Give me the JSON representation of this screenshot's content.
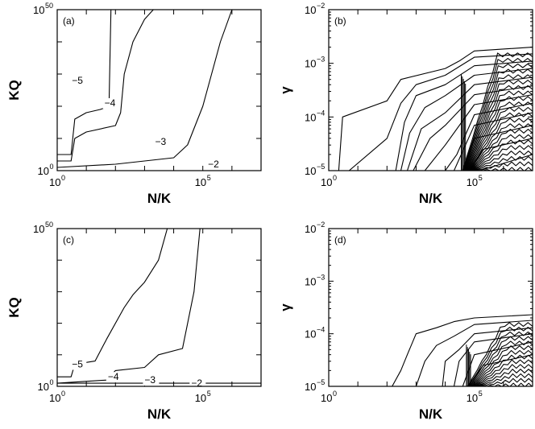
{
  "chart_data": [
    {
      "panel": "(a)",
      "type": "line",
      "xlabel": "N/K",
      "ylabel": "KQ",
      "x_scale": "log",
      "y_scale": "log",
      "xlim": [
        1,
        10000000
      ],
      "ylim": [
        1,
        1e+50
      ],
      "x_ticks": [
        {
          "base": "10",
          "exp": "0",
          "v": 1
        },
        {
          "base": "10",
          "exp": "5",
          "v": 100000
        }
      ],
      "y_ticks": [
        {
          "base": "10",
          "exp": "0",
          "v": 1
        },
        {
          "base": "10",
          "exp": "50",
          "v": 1e+50
        }
      ],
      "series": [
        {
          "name": "−5",
          "label_at": [
            3.2,
            1e+27
          ],
          "points": [
            [
              1,
              100000.0
            ],
            [
              3,
              100000.0
            ],
            [
              4,
              1e+16
            ],
            [
              10,
              1e+18
            ],
            [
              30,
              1e+19
            ],
            [
              60,
              1e+20
            ],
            [
              70,
              1e+50
            ]
          ]
        },
        {
          "name": "−4",
          "label_at": [
            42,
            1e+20
          ],
          "points": [
            [
              1,
              1000.0
            ],
            [
              3,
              1000.0
            ],
            [
              4,
              10000000000.0
            ],
            [
              10,
              1000000000000.0
            ],
            [
              100,
              100000000000000.0
            ],
            [
              150,
              1e+18
            ],
            [
              200,
              1e+30
            ],
            [
              400,
              1e+40
            ],
            [
              1000,
              1e+47
            ],
            [
              2000,
              1e+50
            ]
          ]
        },
        {
          "name": "−3",
          "label_at": [
            2300,
            100000000.0
          ],
          "points": [
            [
              1,
              10.0
            ],
            [
              100,
              100.0
            ],
            [
              10000,
              10000.0
            ],
            [
              30000,
              100000000.0
            ],
            [
              100000,
              1e+20
            ],
            [
              400000,
              1e+40
            ],
            [
              1000000,
              1e+50
            ]
          ]
        },
        {
          "name": "−2",
          "label_at": [
            150000,
            10.0
          ],
          "points": [
            [
              1,
              1.0
            ],
            [
              10000000,
              1.0
            ]
          ]
        }
      ]
    },
    {
      "panel": "(b)",
      "type": "line",
      "xlabel": "N/K",
      "ylabel": "γ",
      "x_scale": "log",
      "y_scale": "log",
      "xlim": [
        1,
        10000000
      ],
      "ylim": [
        1e-05,
        0.01
      ],
      "x_ticks": [
        {
          "base": "10",
          "exp": "0",
          "v": 1
        },
        {
          "base": "10",
          "exp": "5",
          "v": 100000
        }
      ],
      "y_ticks": [
        {
          "base": "10",
          "exp": "−5",
          "v": 1e-05
        },
        {
          "base": "10",
          "exp": "−4",
          "v": 0.0001
        },
        {
          "base": "10",
          "exp": "−3",
          "v": 0.001
        },
        {
          "base": "10",
          "exp": "−2",
          "v": 0.01
        }
      ],
      "series": [
        {
          "points": [
            [
              2.2,
              1e-05
            ],
            [
              3,
              0.0001
            ],
            [
              100,
              0.0002
            ],
            [
              300,
              0.0005
            ],
            [
              10000,
              0.0008
            ],
            [
              30000,
              0.0011
            ],
            [
              100000,
              0.0017
            ],
            [
              10000000,
              0.002
            ]
          ]
        },
        {
          "points": [
            [
              5,
              1e-05
            ],
            [
              100,
              4e-05
            ],
            [
              300,
              0.00018
            ],
            [
              1000,
              0.0004
            ],
            [
              10000,
              0.0006
            ],
            [
              100000,
              0.0013
            ],
            [
              10000000,
              0.0015
            ]
          ]
        },
        {
          "points": [
            [
              200,
              1e-05
            ],
            [
              400,
              8e-05
            ],
            [
              1000,
              0.00025
            ],
            [
              10000,
              0.0004
            ],
            [
              100000,
              0.0009
            ],
            [
              10000000,
              0.0011
            ]
          ]
        },
        {
          "points": [
            [
              300,
              1e-05
            ],
            [
              600,
              5e-05
            ],
            [
              2000,
              0.00015
            ],
            [
              10000,
              0.00025
            ],
            [
              100000,
              0.0006
            ],
            [
              10000000,
              0.0008
            ]
          ]
        },
        {
          "points": [
            [
              500,
              1e-05
            ],
            [
              1500,
              6e-05
            ],
            [
              10000,
              0.00012
            ],
            [
              100000,
              0.0004
            ],
            [
              10000000,
              0.00055
            ]
          ]
        },
        {
          "points": [
            [
              800,
              1e-05
            ],
            [
              3000,
              4e-05
            ],
            [
              10000,
              7e-05
            ],
            [
              100000,
              0.00026
            ],
            [
              10000000,
              0.00038
            ]
          ]
        },
        {
          "points": [
            [
              2000,
              1e-05
            ],
            [
              10000,
              3e-05
            ],
            [
              100000,
              0.00017
            ],
            [
              10000000,
              0.00026
            ]
          ]
        },
        {
          "points": [
            [
              10000,
              1e-05
            ],
            [
              25000,
              2e-05
            ],
            [
              100000,
              0.00011
            ],
            [
              10000000,
              0.00018
            ]
          ]
        },
        {
          "points": [
            [
              20000,
              1e-05
            ],
            [
              100000,
              7e-05
            ],
            [
              10000000,
              0.00012
            ]
          ]
        },
        {
          "points": [
            [
              40000,
              1e-05
            ],
            [
              100000,
              4e-05
            ],
            [
              10000000,
              7e-05
            ]
          ]
        },
        {
          "points": [
            [
              70000,
              1e-05
            ],
            [
              200000,
              2.5e-05
            ],
            [
              10000000,
              4e-05
            ]
          ]
        },
        {
          "points": [
            [
              150000,
              1e-05
            ],
            [
              10000000,
              2e-05
            ]
          ]
        }
      ],
      "dense_band_x": [
        20000,
        10000000
      ],
      "dense_band_y": [
        1e-05,
        0.0015
      ],
      "band_lines": 22
    },
    {
      "panel": "(c)",
      "type": "line",
      "xlabel": "N/K",
      "ylabel": "KQ",
      "x_scale": "log",
      "y_scale": "log",
      "xlim": [
        1,
        10000000
      ],
      "ylim": [
        1,
        1e+50
      ],
      "x_ticks": [
        {
          "base": "10",
          "exp": "0",
          "v": 1
        },
        {
          "base": "10",
          "exp": "5",
          "v": 100000
        }
      ],
      "y_ticks": [
        {
          "base": "10",
          "exp": "0",
          "v": 1
        },
        {
          "base": "10",
          "exp": "50",
          "v": 1e+50
        }
      ],
      "series": [
        {
          "name": "−5",
          "label_at": [
            3.2,
            1000000.0
          ],
          "points": [
            [
              1,
              1000.0
            ],
            [
              3,
              1000.0
            ],
            [
              4,
              10000000.0
            ],
            [
              20,
              100000000.0
            ],
            [
              50,
              1000000000000000.0
            ],
            [
              200,
              1e+25
            ],
            [
              400,
              1e+29
            ],
            [
              1000,
              1e+33
            ],
            [
              3000,
              1e+40
            ],
            [
              6000,
              1e+50
            ]
          ]
        },
        {
          "name": "−4",
          "label_at": [
            55,
            100.0
          ],
          "points": [
            [
              1,
              10.0
            ],
            [
              50,
              100.0
            ],
            [
              100,
              100000.0
            ],
            [
              1000,
              1000000.0
            ],
            [
              3000,
              10000000000.0
            ],
            [
              20000,
              1000000000000.0
            ],
            [
              50000,
              1e+30
            ],
            [
              80000,
              1e+50
            ]
          ]
        },
        {
          "name": "−3",
          "label_at": [
            1000,
            10.0
          ],
          "points": [
            [
              1,
              10.0
            ],
            [
              10000000,
              10.0
            ]
          ]
        },
        {
          "name": "−2",
          "label_at": [
            40000,
            1.0
          ],
          "points": [
            [
              1,
              1.0
            ],
            [
              10000000,
              1.0
            ]
          ]
        }
      ]
    },
    {
      "panel": "(d)",
      "type": "line",
      "xlabel": "N/K",
      "ylabel": "γ",
      "x_scale": "log",
      "y_scale": "log",
      "xlim": [
        1,
        10000000
      ],
      "ylim": [
        1e-05,
        0.01
      ],
      "x_ticks": [
        {
          "base": "10",
          "exp": "0",
          "v": 1
        },
        {
          "base": "10",
          "exp": "5",
          "v": 100000
        }
      ],
      "y_ticks": [
        {
          "base": "10",
          "exp": "−5",
          "v": 1e-05
        },
        {
          "base": "10",
          "exp": "−4",
          "v": 0.0001
        },
        {
          "base": "10",
          "exp": "−3",
          "v": 0.001
        },
        {
          "base": "10",
          "exp": "−2",
          "v": 0.01
        }
      ],
      "series": [
        {
          "points": [
            [
              150,
              1e-05
            ],
            [
              300,
              2e-05
            ],
            [
              500,
              4e-05
            ],
            [
              1000,
              0.0001
            ],
            [
              5000,
              0.00013
            ],
            [
              20000,
              0.00017
            ],
            [
              100000,
              0.0002
            ],
            [
              10000000,
              0.00023
            ]
          ]
        },
        {
          "points": [
            [
              1000,
              1e-05
            ],
            [
              2000,
              3e-05
            ],
            [
              5000,
              6e-05
            ],
            [
              20000,
              9e-05
            ],
            [
              100000,
              0.00015
            ],
            [
              10000000,
              0.00018
            ]
          ]
        },
        {
          "points": [
            [
              8000,
              1e-05
            ],
            [
              10000,
              3e-05
            ],
            [
              30000,
              5e-05
            ],
            [
              100000,
              0.0001
            ],
            [
              10000000,
              0.00013
            ]
          ]
        },
        {
          "points": [
            [
              20000,
              1e-05
            ],
            [
              30000,
              3e-05
            ],
            [
              100000,
              7e-05
            ],
            [
              10000000,
              0.0001
            ]
          ]
        },
        {
          "points": [
            [
              40000,
              1e-05
            ],
            [
              100000,
              4e-05
            ],
            [
              10000000,
              7e-05
            ]
          ]
        },
        {
          "points": [
            [
              60000,
              1e-05
            ],
            [
              200000,
              2.5e-05
            ],
            [
              10000000,
              4e-05
            ]
          ]
        }
      ],
      "dense_band_x": [
        30000,
        10000000
      ],
      "dense_band_y": [
        1e-05,
        0.00015
      ],
      "band_lines": 14
    }
  ]
}
